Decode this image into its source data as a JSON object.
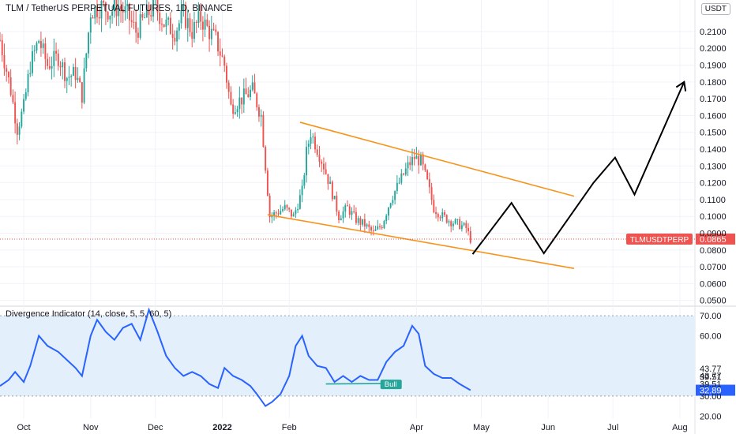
{
  "chart_title": "TLM / TetherUS PERPETUAL FUTURES, 1D, BINANCE",
  "currency": "USDT",
  "price_tag": {
    "symbol": "TLMUSDTPERP",
    "value": "0.0865"
  },
  "indicator_title": "Divergence Indicator (14, close, 5, 5, 60, 5)",
  "indicator_tag": "32.89",
  "bull_label": "Bull",
  "colors": {
    "up": "#26a69a",
    "down": "#ef5350",
    "trendline": "#f7931a",
    "projection": "#000000",
    "rsi": "#2962ff",
    "band": "#e3f0fb",
    "price_tag": "#ef5350",
    "bull_tag": "#26a69a"
  },
  "chart_data": [
    {
      "type": "candlestick",
      "x_axis": {
        "ticks": [
          "Oct",
          "Nov",
          "Dec",
          "2022",
          "Feb",
          "Apr",
          "May",
          "Jun",
          "Jul",
          "Aug"
        ],
        "tick_dates": [
          "2021-10-01",
          "2021-11-01",
          "2021-12-01",
          "2022-01-01",
          "2022-02-01",
          "2022-04-01",
          "2022-05-01",
          "2022-06-01",
          "2022-07-01",
          "2022-08-01"
        ],
        "range": [
          "2021-09-20",
          "2022-08-08"
        ]
      },
      "y_axis": {
        "ticks": [
          "0.2100",
          "0.2000",
          "0.1900",
          "0.1800",
          "0.1700",
          "0.1600",
          "0.1500",
          "0.1400",
          "0.1300",
          "0.1200",
          "0.1100",
          "0.1000",
          "0.0900",
          "0.0800",
          "0.0700",
          "0.0600",
          "0.0500"
        ],
        "range": [
          0.0475,
          0.225
        ]
      },
      "last_price": 0.0865,
      "price_path": [
        [
          "2021-09-20",
          0.205
        ],
        [
          "2021-09-25",
          0.175
        ],
        [
          "2021-09-28",
          0.152
        ],
        [
          "2021-10-01",
          0.165
        ],
        [
          "2021-10-04",
          0.19
        ],
        [
          "2021-10-08",
          0.205
        ],
        [
          "2021-10-12",
          0.19
        ],
        [
          "2021-10-17",
          0.195
        ],
        [
          "2021-10-21",
          0.183
        ],
        [
          "2021-10-25",
          0.185
        ],
        [
          "2021-10-28",
          0.172
        ],
        [
          "2021-11-01",
          0.222
        ],
        [
          "2021-11-06",
          0.225
        ],
        [
          "2021-11-10",
          0.222
        ],
        [
          "2021-11-14",
          0.225
        ],
        [
          "2021-11-18",
          0.22
        ],
        [
          "2021-11-22",
          0.21
        ],
        [
          "2021-11-27",
          0.22
        ],
        [
          "2021-12-01",
          0.225
        ],
        [
          "2021-12-05",
          0.215
        ],
        [
          "2021-12-10",
          0.21
        ],
        [
          "2021-12-14",
          0.22
        ],
        [
          "2021-12-18",
          0.21
        ],
        [
          "2021-12-22",
          0.218
        ],
        [
          "2021-12-26",
          0.21
        ],
        [
          "2021-12-29",
          0.205
        ],
        [
          "2022-01-02",
          0.19
        ],
        [
          "2022-01-05",
          0.165
        ],
        [
          "2022-01-10",
          0.17
        ],
        [
          "2022-01-15",
          0.175
        ],
        [
          "2022-01-19",
          0.16
        ],
        [
          "2022-01-21",
          0.13
        ],
        [
          "2022-01-23",
          0.1
        ],
        [
          "2022-01-26",
          0.102
        ],
        [
          "2022-01-30",
          0.105
        ],
        [
          "2022-02-03",
          0.1
        ],
        [
          "2022-02-07",
          0.115
        ],
        [
          "2022-02-09",
          0.138
        ],
        [
          "2022-02-11",
          0.15
        ],
        [
          "2022-02-14",
          0.14
        ],
        [
          "2022-02-17",
          0.13
        ],
        [
          "2022-02-20",
          0.118
        ],
        [
          "2022-02-24",
          0.1
        ],
        [
          "2022-02-28",
          0.105
        ],
        [
          "2022-03-04",
          0.098
        ],
        [
          "2022-03-08",
          0.095
        ],
        [
          "2022-03-12",
          0.09
        ],
        [
          "2022-03-16",
          0.095
        ],
        [
          "2022-03-20",
          0.11
        ],
        [
          "2022-03-24",
          0.12
        ],
        [
          "2022-03-28",
          0.13
        ],
        [
          "2022-03-31",
          0.135
        ],
        [
          "2022-04-03",
          0.133
        ],
        [
          "2022-04-06",
          0.12
        ],
        [
          "2022-04-09",
          0.105
        ],
        [
          "2022-04-13",
          0.1
        ],
        [
          "2022-04-17",
          0.097
        ],
        [
          "2022-04-21",
          0.095
        ],
        [
          "2022-04-24",
          0.093
        ],
        [
          "2022-04-26",
          0.0865
        ]
      ],
      "upper_trendline": [
        [
          "2022-02-06",
          0.156
        ],
        [
          "2022-06-13",
          0.112
        ]
      ],
      "lower_trendline": [
        [
          "2022-01-22",
          0.101
        ],
        [
          "2022-06-13",
          0.069
        ]
      ],
      "projection_path": [
        [
          "2022-04-27",
          0.0775
        ],
        [
          "2022-05-15",
          0.108
        ],
        [
          "2022-05-30",
          0.078
        ],
        [
          "2022-06-22",
          0.12
        ],
        [
          "2022-07-02",
          0.135
        ],
        [
          "2022-07-11",
          0.113
        ],
        [
          "2022-08-03",
          0.18
        ]
      ]
    },
    {
      "type": "line",
      "name": "Divergence Indicator (14, close, 5, 5, 60, 5)",
      "y_axis": {
        "ticks": [
          "70.00",
          "60.00",
          "43.77",
          "43.77",
          "39.51",
          "39.51",
          "30.00",
          "20.00"
        ],
        "range": [
          15,
          74
        ]
      },
      "upper_band": 70,
      "lower_band": 30,
      "last_value": 32.89,
      "values": [
        [
          "2021-09-20",
          35
        ],
        [
          "2021-09-24",
          38
        ],
        [
          "2021-09-27",
          42
        ],
        [
          "2021-10-01",
          37
        ],
        [
          "2021-10-04",
          45
        ],
        [
          "2021-10-08",
          60
        ],
        [
          "2021-10-12",
          55
        ],
        [
          "2021-10-17",
          52
        ],
        [
          "2021-10-21",
          48
        ],
        [
          "2021-10-25",
          44
        ],
        [
          "2021-10-28",
          40
        ],
        [
          "2021-11-01",
          60
        ],
        [
          "2021-11-04",
          68
        ],
        [
          "2021-11-08",
          62
        ],
        [
          "2021-11-12",
          58
        ],
        [
          "2021-11-16",
          64
        ],
        [
          "2021-11-20",
          66
        ],
        [
          "2021-11-24",
          58
        ],
        [
          "2021-11-28",
          73
        ],
        [
          "2021-12-02",
          62
        ],
        [
          "2021-12-06",
          50
        ],
        [
          "2021-12-10",
          44
        ],
        [
          "2021-12-14",
          40
        ],
        [
          "2021-12-18",
          42
        ],
        [
          "2021-12-22",
          40
        ],
        [
          "2021-12-26",
          36
        ],
        [
          "2021-12-30",
          34
        ],
        [
          "2022-01-02",
          44
        ],
        [
          "2022-01-06",
          40
        ],
        [
          "2022-01-10",
          38
        ],
        [
          "2022-01-14",
          35
        ],
        [
          "2022-01-17",
          31
        ],
        [
          "2022-01-21",
          25
        ],
        [
          "2022-01-24",
          27
        ],
        [
          "2022-01-28",
          31
        ],
        [
          "2022-02-01",
          40
        ],
        [
          "2022-02-04",
          55
        ],
        [
          "2022-02-07",
          60
        ],
        [
          "2022-02-10",
          50
        ],
        [
          "2022-02-14",
          45
        ],
        [
          "2022-02-18",
          44
        ],
        [
          "2022-02-22",
          37
        ],
        [
          "2022-02-26",
          40
        ],
        [
          "2022-03-02",
          37
        ],
        [
          "2022-03-06",
          40
        ],
        [
          "2022-03-10",
          38
        ],
        [
          "2022-03-14",
          38
        ],
        [
          "2022-03-18",
          47
        ],
        [
          "2022-03-22",
          52
        ],
        [
          "2022-03-26",
          55
        ],
        [
          "2022-03-30",
          65
        ],
        [
          "2022-04-02",
          61
        ],
        [
          "2022-04-05",
          45
        ],
        [
          "2022-04-09",
          41
        ],
        [
          "2022-04-13",
          39
        ],
        [
          "2022-04-17",
          39
        ],
        [
          "2022-04-21",
          36
        ],
        [
          "2022-04-26",
          32.89
        ]
      ],
      "divergence_line": [
        [
          "2022-02-18",
          36
        ],
        [
          "2022-03-16",
          36.2
        ]
      ]
    }
  ]
}
